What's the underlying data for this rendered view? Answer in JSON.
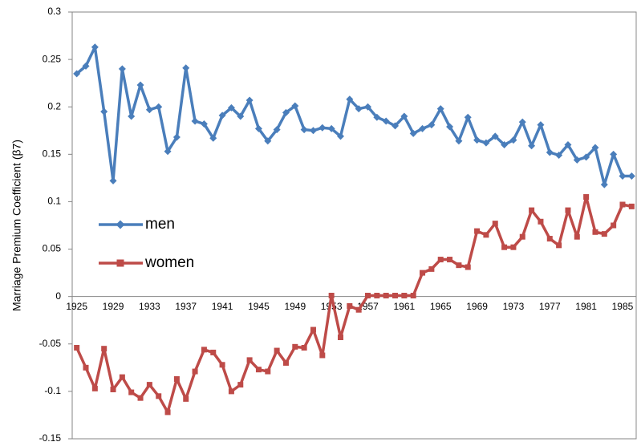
{
  "chart_data": {
    "type": "line",
    "y_label": "Marriage Premium Coefficient (β7)",
    "categories": [
      "1925",
      null,
      null,
      null,
      "1929",
      null,
      null,
      null,
      "1933",
      null,
      null,
      null,
      "1937",
      null,
      null,
      null,
      "1941",
      null,
      null,
      null,
      "1945",
      null,
      null,
      null,
      "1949",
      null,
      null,
      null,
      "1953",
      null,
      null,
      null,
      "1957",
      null,
      null,
      null,
      "1961",
      null,
      null,
      null,
      "1965",
      null,
      null,
      null,
      "1969",
      null,
      null,
      null,
      "1973",
      null,
      null,
      null,
      "1977",
      null,
      null,
      null,
      "1981",
      null,
      null,
      null,
      "1985",
      null
    ],
    "series": [
      {
        "name": "men",
        "color": "#4a7ebb",
        "marker": "diamond",
        "values": [
          0.235,
          0.243,
          0.263,
          0.195,
          0.122,
          0.24,
          0.19,
          0.223,
          0.197,
          0.2,
          0.153,
          0.168,
          0.241,
          0.185,
          0.182,
          0.167,
          0.191,
          0.199,
          0.19,
          0.207,
          0.177,
          0.164,
          0.176,
          0.194,
          0.201,
          0.176,
          0.175,
          0.178,
          0.177,
          0.169,
          0.208,
          0.198,
          0.2,
          0.189,
          0.185,
          0.18,
          0.19,
          0.172,
          0.177,
          0.181,
          0.198,
          0.179,
          0.164,
          0.189,
          0.165,
          0.162,
          0.169,
          0.16,
          0.165,
          0.184,
          0.159,
          0.181,
          0.152,
          0.149,
          0.16,
          0.144,
          0.147,
          0.157,
          0.118,
          0.15,
          0.127,
          0.127
        ]
      },
      {
        "name": "women",
        "color": "#be4b48",
        "marker": "square",
        "values": [
          -0.054,
          -0.075,
          -0.097,
          -0.055,
          -0.098,
          -0.085,
          -0.101,
          -0.107,
          -0.093,
          -0.105,
          -0.122,
          -0.087,
          -0.108,
          -0.079,
          -0.056,
          -0.059,
          -0.072,
          -0.1,
          -0.093,
          -0.067,
          -0.077,
          -0.079,
          -0.057,
          -0.07,
          -0.053,
          -0.054,
          -0.035,
          -0.062,
          0.001,
          -0.043,
          -0.01,
          -0.014,
          0.001,
          0.001,
          0.001,
          0.001,
          0.001,
          0.001,
          0.025,
          0.029,
          0.039,
          0.039,
          0.033,
          0.031,
          0.069,
          0.065,
          0.077,
          0.052,
          0.052,
          0.063,
          0.091,
          0.079,
          0.061,
          0.054,
          0.091,
          0.063,
          0.105,
          0.068,
          0.066,
          0.075,
          0.097,
          0.095
        ]
      }
    ],
    "ylim": [
      -0.15,
      0.3
    ],
    "yticks": [
      -0.15,
      -0.1,
      -0.05,
      0,
      0.05,
      0.1,
      0.15,
      0.2,
      0.25,
      0.3
    ],
    "grid": false,
    "legend": "left"
  }
}
